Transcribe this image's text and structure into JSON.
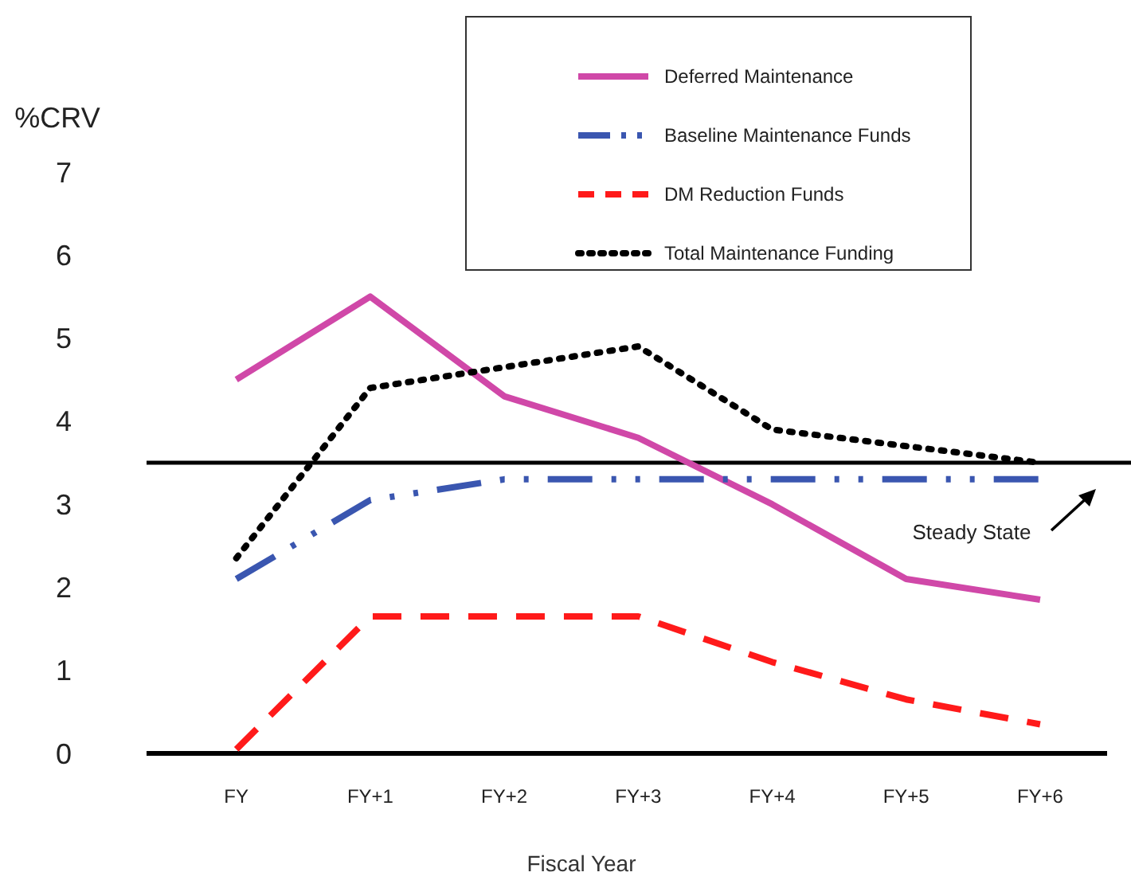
{
  "chart_data": {
    "type": "line",
    "ylabel": "%CRV",
    "xlabel": "Fiscal Year",
    "categories": [
      "FY",
      "FY+1",
      "FY+2",
      "FY+3",
      "FY+4",
      "FY+5",
      "FY+6"
    ],
    "series": [
      {
        "name": "Deferred Maintenance",
        "color": "#d048a8",
        "line_style": "solid",
        "values": [
          4.5,
          5.5,
          4.3,
          3.8,
          3.0,
          2.1,
          1.85
        ]
      },
      {
        "name": "Baseline Maintenance Funds",
        "color": "#3a56b0",
        "line_style": "dashdot",
        "values": [
          2.1,
          3.05,
          3.3,
          3.3,
          3.3,
          3.3,
          3.3
        ]
      },
      {
        "name": "DM Reduction Funds",
        "color": "#ff1a1a",
        "line_style": "dashed",
        "values": [
          0.05,
          1.65,
          1.65,
          1.65,
          1.1,
          0.65,
          0.35
        ]
      },
      {
        "name": "Total Maintenance Funding",
        "color": "#000000",
        "line_style": "dotted",
        "values": [
          2.35,
          4.4,
          4.65,
          4.9,
          3.9,
          3.7,
          3.5
        ]
      }
    ],
    "ylim": [
      0,
      7
    ],
    "yticks": [
      0,
      1,
      2,
      3,
      4,
      5,
      6,
      7
    ],
    "ref_lines": [
      {
        "axis": "y",
        "value": 3.5,
        "label": "Steady State",
        "color": "#000000"
      }
    ],
    "legend": "top",
    "grid": false,
    "marker": "none"
  }
}
